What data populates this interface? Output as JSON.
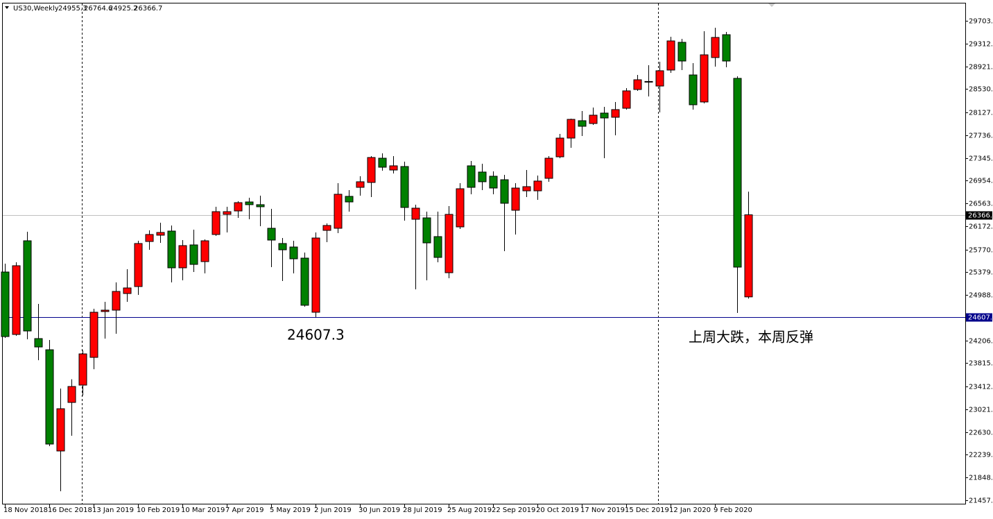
{
  "chart_data": {
    "type": "candlestick",
    "title": "US30,Weekly",
    "annotation": "上周大跌，本周反弹",
    "level": 24607.3,
    "up_color": "#ff0000",
    "down_color": "#008000",
    "level_color": "#00008b",
    "categories": [
      "18 Nov 2018",
      null,
      null,
      null,
      "16 Dec 2018",
      null,
      null,
      null,
      "13 Jan 2019",
      null,
      null,
      null,
      "10 Feb 2019",
      null,
      null,
      null,
      "10 Mar 2019",
      null,
      null,
      null,
      "7 Apr 2019",
      null,
      null,
      null,
      "5 May 2019",
      null,
      null,
      null,
      "2 Jun 2019",
      null,
      null,
      null,
      "30 Jun 2019",
      null,
      null,
      null,
      "28 Jul 2019",
      null,
      null,
      null,
      "25 Aug 2019",
      null,
      null,
      null,
      "22 Sep 2019",
      null,
      null,
      null,
      "20 Oct 2019",
      null,
      null,
      null,
      "17 Nov 2019",
      null,
      null,
      null,
      "15 Dec 2019",
      null,
      null,
      null,
      "12 Jan 2020",
      null,
      null,
      null,
      "9 Feb 2020",
      null,
      null,
      null
    ],
    "open": [
      25383,
      24309,
      25920,
      24238,
      24046,
      22305,
      23140,
      23438,
      23915,
      24703,
      24727,
      25013,
      25133,
      25908,
      26016,
      26087,
      25455,
      25849,
      25562,
      26028,
      26374,
      26433,
      26588,
      26541,
      26135,
      25873,
      25813,
      25622,
      24691,
      26099,
      26135,
      26684,
      26839,
      26923,
      27340,
      27137,
      27197,
      26290,
      26314,
      25992,
      25371,
      26159,
      27209,
      27102,
      27030,
      26970,
      26445,
      26779,
      26779,
      26994,
      27364,
      27686,
      27985,
      27937,
      28116,
      28044,
      28199,
      28522,
      28653,
      28581,
      28856,
      29333,
      28772,
      28307,
      29071,
      29464,
      28713,
      24955.3
    ],
    "high": [
      25526,
      25550,
      26075,
      24834,
      24214,
      23378,
      23538,
      24034,
      24751,
      24870,
      25204,
      25431,
      25920,
      26099,
      26231,
      26183,
      25932,
      26111,
      25944,
      26505,
      26505,
      26600,
      26660,
      26696,
      26469,
      25968,
      25920,
      25718,
      26063,
      26219,
      26911,
      26791,
      27030,
      27376,
      27424,
      27376,
      27281,
      26541,
      26421,
      26421,
      26517,
      26911,
      27293,
      27245,
      27114,
      27054,
      26911,
      27137,
      27042,
      27376,
      27758,
      28020,
      28152,
      28211,
      28223,
      28307,
      28546,
      28772,
      28939,
      28999,
      29429,
      29393,
      28975,
      29524,
      29584,
      29512,
      28748,
      26764.6
    ],
    "low": [
      24250,
      24285,
      24226,
      23867,
      22388,
      21612,
      22567,
      23259,
      23711,
      24238,
      24321,
      24870,
      24990,
      25765,
      25884,
      25204,
      25240,
      25383,
      25359,
      26004,
      26063,
      26314,
      26290,
      26171,
      25467,
      25228,
      25359,
      24787,
      24607.3,
      25896,
      26051,
      26421,
      26696,
      26672,
      27125,
      27078,
      26266,
      25085,
      25240,
      25550,
      25276,
      26123,
      26720,
      26791,
      26720,
      25741,
      26028,
      26672,
      26624,
      26935,
      27340,
      27519,
      27722,
      27913,
      27340,
      27734,
      28176,
      28498,
      28402,
      28128,
      28808,
      28856,
      28176,
      28283,
      28915,
      28904,
      24679,
      24925.2
    ],
    "close": [
      24273,
      25491,
      24369,
      24094,
      22424,
      23032,
      23414,
      23975,
      24691,
      24727,
      25049,
      25109,
      25873,
      26028,
      26063,
      25455,
      25837,
      25514,
      25920,
      26421,
      26421,
      26576,
      26541,
      26505,
      25932,
      25765,
      25610,
      24811,
      25968,
      26183,
      26720,
      26588,
      26935,
      27352,
      27185,
      27209,
      26493,
      26481,
      25884,
      25634,
      26374,
      26815,
      26839,
      26935,
      26827,
      26565,
      26827,
      26851,
      26947,
      27340,
      27686,
      28008,
      27889,
      28080,
      28032,
      28176,
      28498,
      28689,
      28660,
      28844,
      29357,
      29011,
      28259,
      29118,
      29417,
      29011,
      25467,
      26366.7
    ],
    "ylim": [
      21386,
      30001
    ],
    "yticks": [
      {
        "value": 29703,
        "label": "29703.0"
      },
      {
        "value": 29312,
        "label": "29312.0"
      },
      {
        "value": 28921,
        "label": "28921.0"
      },
      {
        "value": 28530,
        "label": "28530.0"
      },
      28127.5,
      27736.5,
      27345.5,
      26954.5,
      26563.5,
      26172.5,
      {
        "value": 25770,
        "label": "25770.0"
      },
      {
        "value": 25379,
        "label": "25379.0"
      },
      {
        "value": 24988,
        "label": "24988.0"
      },
      {
        "value": 24206,
        "label": "24206.0"
      },
      {
        "value": 23815,
        "label": "23815.0"
      },
      23412.5,
      23021.5,
      22630.5,
      22239.5,
      21848.5,
      21457.5
    ]
  }
}
